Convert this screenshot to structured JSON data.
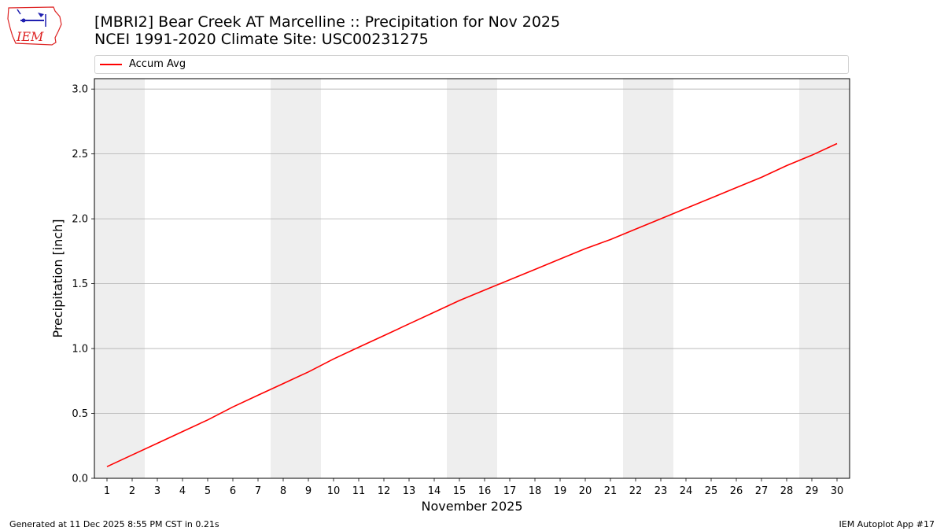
{
  "header": {
    "title_line1": "[MBRI2] Bear Creek  AT Marcelline :: Precipitation for Nov 2025",
    "title_line2": "NCEI 1991-2020 Climate Site: USC00231275",
    "logo_text": "IEM",
    "logo_icon": "iowa-state-outline-icon"
  },
  "footer": {
    "generated": "Generated at 11 Dec 2025 8:55 PM CST in 0.21s",
    "app": "IEM Autoplot App #17"
  },
  "colors": {
    "series": "#ff0000",
    "weekend_band": "#eeeeee",
    "grid": "#b0b0b0"
  },
  "chart_data": {
    "type": "line",
    "title": "[MBRI2] Bear Creek  AT Marcelline :: Precipitation for Nov 2025",
    "subtitle": "NCEI 1991-2020 Climate Site: USC00231275",
    "xlabel": "November 2025",
    "ylabel": "Precipitation [inch]",
    "xlim": [
      0.5,
      30.5
    ],
    "ylim": [
      0,
      3.08
    ],
    "x_ticks": [
      1,
      2,
      3,
      4,
      5,
      6,
      7,
      8,
      9,
      10,
      11,
      12,
      13,
      14,
      15,
      16,
      17,
      18,
      19,
      20,
      21,
      22,
      23,
      24,
      25,
      26,
      27,
      28,
      29,
      30
    ],
    "y_ticks": [
      0.0,
      0.5,
      1.0,
      1.5,
      2.0,
      2.5,
      3.0
    ],
    "y_tick_labels": [
      "0.0",
      "0.5",
      "1.0",
      "1.5",
      "2.0",
      "2.5",
      "3.0"
    ],
    "grid": "horizontal",
    "legend": "top",
    "weekend_bands": [
      [
        0.5,
        2.5
      ],
      [
        7.5,
        9.5
      ],
      [
        14.5,
        16.5
      ],
      [
        21.5,
        23.5
      ],
      [
        28.5,
        30.5
      ]
    ],
    "x": [
      1,
      2,
      3,
      4,
      5,
      6,
      7,
      8,
      9,
      10,
      11,
      12,
      13,
      14,
      15,
      16,
      17,
      18,
      19,
      20,
      21,
      22,
      23,
      24,
      25,
      26,
      27,
      28,
      29,
      30
    ],
    "series": [
      {
        "name": "Accum Avg",
        "color": "#ff0000",
        "values": [
          0.09,
          0.18,
          0.27,
          0.36,
          0.45,
          0.55,
          0.64,
          0.73,
          0.82,
          0.92,
          1.01,
          1.1,
          1.19,
          1.28,
          1.37,
          1.45,
          1.53,
          1.61,
          1.69,
          1.77,
          1.84,
          1.92,
          2.0,
          2.08,
          2.16,
          2.24,
          2.32,
          2.41,
          2.49,
          2.58
        ]
      }
    ]
  }
}
